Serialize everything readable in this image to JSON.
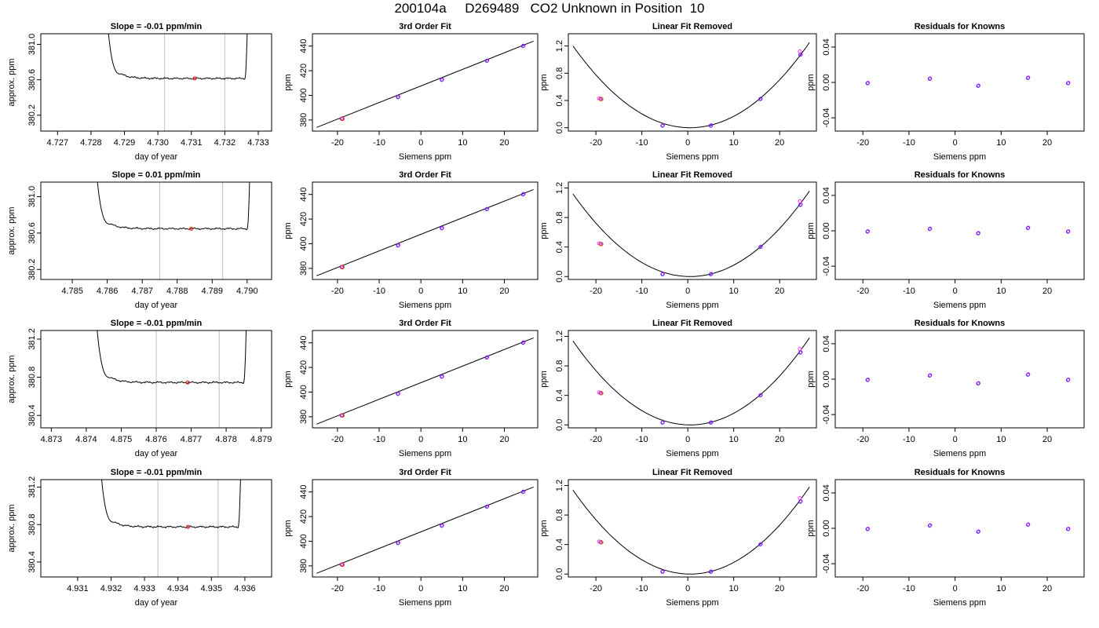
{
  "page": {
    "title": "200104a     D269489   CO2 Unknown in Position  10"
  },
  "chart_data": [
    {
      "row": 1,
      "type": "line",
      "title": "Slope =  -0.01  ppm/min",
      "xlabel": "day of year",
      "ylabel": "approx. ppm",
      "xlim": [
        4.7265,
        4.7334
      ],
      "ylim": [
        380.02,
        381.12
      ],
      "xticks": [
        "4.727",
        "4.728",
        "4.729",
        "4.730",
        "4.731",
        "4.732",
        "4.733"
      ],
      "yticks": [
        "380.2",
        "380.6",
        "381.0"
      ],
      "vlines": [
        4.7302,
        4.732
      ],
      "baseline": 380.615,
      "highlight": [
        4.7311,
        380.615
      ],
      "rise_left": [
        4.7284,
        4.7289
      ],
      "rise_right": [
        4.7326,
        4.7327
      ]
    },
    {
      "row": 1,
      "type": "scatter",
      "title": "3rd Order Fit",
      "xlabel": "Siemens ppm",
      "ylabel": "ppm",
      "xlim": [
        -26,
        28
      ],
      "ylim": [
        371,
        450
      ],
      "xticks": [
        "-20",
        "-10",
        "0",
        "10",
        "20"
      ],
      "yticks": [
        "380",
        "400",
        "420",
        "440"
      ],
      "points": [
        [
          -19,
          381
        ],
        [
          -5.5,
          398.5
        ],
        [
          5,
          412.5
        ],
        [
          15.8,
          428
        ],
        [
          24.5,
          440
        ]
      ],
      "line": [
        [
          -25,
          374
        ],
        [
          27,
          444
        ]
      ]
    },
    {
      "row": 1,
      "type": "scatter",
      "title": "Linear Fit Removed",
      "xlabel": "Siemens ppm",
      "ylabel": "ppm",
      "xlim": [
        -26,
        28
      ],
      "ylim": [
        -0.05,
        1.38
      ],
      "xticks": [
        "-20",
        "-10",
        "0",
        "10",
        "20"
      ],
      "yticks": [
        "0.0",
        "0.4",
        "0.8",
        "1.2"
      ],
      "points": [
        [
          -19,
          0.42
        ],
        [
          -19.3,
          0.43
        ],
        [
          -5.5,
          0.03
        ],
        [
          5,
          0.03
        ],
        [
          15.8,
          0.42
        ],
        [
          24.5,
          1.07
        ],
        [
          24.4,
          1.12
        ]
      ],
      "curve": {
        "a": 0.00185,
        "b": -0.0018,
        "c": 0.0,
        "x0": -25,
        "x1": 26.5
      }
    },
    {
      "row": 1,
      "type": "scatter",
      "title": "Residuals for Knowns",
      "xlabel": "Siemens ppm",
      "ylabel": "ppm",
      "xlim": [
        -26,
        28
      ],
      "ylim": [
        -0.055,
        0.055
      ],
      "xticks": [
        "-20",
        "-10",
        "0",
        "10",
        "20"
      ],
      "yticks": [
        "-0.04",
        "0.00",
        "0.04"
      ],
      "points": [
        [
          -19,
          -0.001
        ],
        [
          -5.5,
          0.004
        ],
        [
          5,
          -0.004
        ],
        [
          15.8,
          0.005
        ],
        [
          24.5,
          -0.001
        ]
      ]
    },
    {
      "row": 2,
      "type": "line",
      "title": "Slope =  0.01  ppm/min",
      "xlabel": "day of year",
      "ylabel": "approx. ppm",
      "xlim": [
        4.7841,
        4.7907
      ],
      "ylim": [
        380.09,
        381.16
      ],
      "xticks": [
        "4.785",
        "4.786",
        "4.787",
        "4.788",
        "4.789",
        "4.790"
      ],
      "yticks": [
        "380.2",
        "380.6",
        "381.0"
      ],
      "vlines": [
        4.7875,
        4.7893
      ],
      "baseline": 380.648,
      "highlight": [
        4.7884,
        380.648
      ],
      "rise_left": [
        4.7856,
        4.7861
      ],
      "rise_right": [
        4.79,
        4.7901
      ]
    },
    {
      "row": 2,
      "type": "scatter",
      "title": "3rd Order Fit",
      "xlabel": "Siemens ppm",
      "ylabel": "ppm",
      "xlim": [
        -26,
        28
      ],
      "ylim": [
        371,
        450
      ],
      "xticks": [
        "-20",
        "-10",
        "0",
        "10",
        "20"
      ],
      "yticks": [
        "380",
        "400",
        "420",
        "440"
      ],
      "points": [
        [
          -19,
          381
        ],
        [
          -5.5,
          398.5
        ],
        [
          5,
          412.5
        ],
        [
          15.8,
          428
        ],
        [
          24.5,
          440
        ]
      ],
      "line": [
        [
          -25,
          374
        ],
        [
          27,
          444
        ]
      ]
    },
    {
      "row": 2,
      "type": "scatter",
      "title": "Linear Fit Removed",
      "xlabel": "Siemens ppm",
      "ylabel": "ppm",
      "xlim": [
        -26,
        28
      ],
      "ylim": [
        -0.04,
        1.28
      ],
      "xticks": [
        "-20",
        "-10",
        "0",
        "10",
        "20"
      ],
      "yticks": [
        "0.0",
        "0.4",
        "0.8",
        "1.2"
      ],
      "points": [
        [
          -19,
          0.44
        ],
        [
          -19.3,
          0.45
        ],
        [
          -5.5,
          0.03
        ],
        [
          5,
          0.03
        ],
        [
          15.8,
          0.4
        ],
        [
          24.5,
          0.97
        ],
        [
          24.4,
          1.02
        ]
      ],
      "curve": {
        "a": 0.00172,
        "b": -0.0018,
        "c": 0.0,
        "x0": -25,
        "x1": 26.5
      }
    },
    {
      "row": 2,
      "type": "scatter",
      "title": "Residuals for Knowns",
      "xlabel": "Siemens ppm",
      "ylabel": "ppm",
      "xlim": [
        -26,
        28
      ],
      "ylim": [
        -0.055,
        0.055
      ],
      "xticks": [
        "-20",
        "-10",
        "0",
        "10",
        "20"
      ],
      "yticks": [
        "-0.04",
        "0.00",
        "0.04"
      ],
      "points": [
        [
          -19,
          -0.001
        ],
        [
          -5.5,
          0.002
        ],
        [
          5,
          -0.003
        ],
        [
          15.8,
          0.003
        ],
        [
          24.5,
          -0.001
        ]
      ]
    },
    {
      "row": 3,
      "type": "line",
      "title": "Slope =  -0.01  ppm/min",
      "xlabel": "day of year",
      "ylabel": "approx. ppm",
      "xlim": [
        4.8727,
        4.8793
      ],
      "ylim": [
        380.27,
        381.29
      ],
      "xticks": [
        "4.873",
        "4.874",
        "4.875",
        "4.876",
        "4.877",
        "4.878",
        "4.879"
      ],
      "yticks": [
        "380.4",
        "380.8",
        "381.2"
      ],
      "vlines": [
        4.876,
        4.8778
      ],
      "baseline": 380.745,
      "highlight": [
        4.8769,
        380.745
      ],
      "rise_left": [
        4.8742,
        4.8747
      ],
      "rise_right": [
        4.8785,
        4.8786
      ]
    },
    {
      "row": 3,
      "type": "scatter",
      "title": "3rd Order Fit",
      "xlabel": "Siemens ppm",
      "ylabel": "ppm",
      "xlim": [
        -26,
        28
      ],
      "ylim": [
        371,
        450
      ],
      "xticks": [
        "-20",
        "-10",
        "0",
        "10",
        "20"
      ],
      "yticks": [
        "380",
        "400",
        "420",
        "440"
      ],
      "points": [
        [
          -19,
          381
        ],
        [
          -5.5,
          398.5
        ],
        [
          5,
          412.5
        ],
        [
          15.8,
          428
        ],
        [
          24.5,
          440
        ]
      ],
      "line": [
        [
          -25,
          374
        ],
        [
          27,
          444
        ]
      ]
    },
    {
      "row": 3,
      "type": "scatter",
      "title": "Linear Fit Removed",
      "xlabel": "Siemens ppm",
      "ylabel": "ppm",
      "xlim": [
        -26,
        28
      ],
      "ylim": [
        -0.04,
        1.28
      ],
      "xticks": [
        "-20",
        "-10",
        "0",
        "10",
        "20"
      ],
      "yticks": [
        "0.0",
        "0.4",
        "0.8",
        "1.2"
      ],
      "points": [
        [
          -19,
          0.43
        ],
        [
          -19.3,
          0.44
        ],
        [
          -5.5,
          0.03
        ],
        [
          5,
          0.03
        ],
        [
          15.8,
          0.4
        ],
        [
          24.5,
          0.98
        ],
        [
          24.4,
          1.03
        ]
      ],
      "curve": {
        "a": 0.00175,
        "b": -0.0018,
        "c": 0.0,
        "x0": -25,
        "x1": 26.5
      }
    },
    {
      "row": 3,
      "type": "scatter",
      "title": "Residuals for Knowns",
      "xlabel": "Siemens ppm",
      "ylabel": "ppm",
      "xlim": [
        -26,
        28
      ],
      "ylim": [
        -0.055,
        0.055
      ],
      "xticks": [
        "-20",
        "-10",
        "0",
        "10",
        "20"
      ],
      "yticks": [
        "-0.04",
        "0.00",
        "0.04"
      ],
      "points": [
        [
          -19,
          -0.001
        ],
        [
          -5.5,
          0.004
        ],
        [
          5,
          -0.005
        ],
        [
          15.8,
          0.005
        ],
        [
          24.5,
          -0.001
        ]
      ]
    },
    {
      "row": 4,
      "type": "line",
      "title": "Slope =  -0.01  ppm/min",
      "xlabel": "day of year",
      "ylabel": "approx. ppm",
      "xlim": [
        4.9299,
        4.9368
      ],
      "ylim": [
        380.24,
        381.28
      ],
      "xticks": [
        "4.931",
        "4.932",
        "4.933",
        "4.934",
        "4.935",
        "4.936"
      ],
      "yticks": [
        "380.4",
        "380.8",
        "381.2"
      ],
      "vlines": [
        4.9334,
        4.9352
      ],
      "baseline": 380.775,
      "highlight": [
        4.9343,
        380.775
      ],
      "rise_left": [
        4.9316,
        4.9321
      ],
      "rise_right": [
        4.9358,
        4.9359
      ]
    },
    {
      "row": 4,
      "type": "scatter",
      "title": "3rd Order Fit",
      "xlabel": "Siemens ppm",
      "ylabel": "ppm",
      "xlim": [
        -26,
        28
      ],
      "ylim": [
        371,
        450
      ],
      "xticks": [
        "-20",
        "-10",
        "0",
        "10",
        "20"
      ],
      "yticks": [
        "380",
        "400",
        "420",
        "440"
      ],
      "points": [
        [
          -19,
          381
        ],
        [
          -5.5,
          398.5
        ],
        [
          5,
          412.5
        ],
        [
          15.8,
          428
        ],
        [
          24.5,
          440
        ]
      ],
      "line": [
        [
          -25,
          374
        ],
        [
          27,
          444
        ]
      ]
    },
    {
      "row": 4,
      "type": "scatter",
      "title": "Linear Fit Removed",
      "xlabel": "Siemens ppm",
      "ylabel": "ppm",
      "xlim": [
        -26,
        28
      ],
      "ylim": [
        -0.04,
        1.28
      ],
      "xticks": [
        "-20",
        "-10",
        "0",
        "10",
        "20"
      ],
      "yticks": [
        "0.0",
        "0.4",
        "0.8",
        "1.2"
      ],
      "points": [
        [
          -19,
          0.43
        ],
        [
          -19.3,
          0.44
        ],
        [
          -5.5,
          0.03
        ],
        [
          5,
          0.03
        ],
        [
          15.8,
          0.4
        ],
        [
          24.5,
          0.98
        ],
        [
          24.4,
          1.03
        ]
      ],
      "curve": {
        "a": 0.00175,
        "b": -0.0018,
        "c": 0.0,
        "x0": -25,
        "x1": 26.5
      }
    },
    {
      "row": 4,
      "type": "scatter",
      "title": "Residuals for Knowns",
      "xlabel": "Siemens ppm",
      "ylabel": "ppm",
      "xlim": [
        -26,
        28
      ],
      "ylim": [
        -0.055,
        0.055
      ],
      "xticks": [
        "-20",
        "-10",
        "0",
        "10",
        "20"
      ],
      "yticks": [
        "-0.04",
        "0.00",
        "0.04"
      ],
      "points": [
        [
          -19,
          -0.001
        ],
        [
          -5.5,
          0.003
        ],
        [
          5,
          -0.004
        ],
        [
          15.8,
          0.004
        ],
        [
          24.5,
          -0.001
        ]
      ]
    }
  ]
}
